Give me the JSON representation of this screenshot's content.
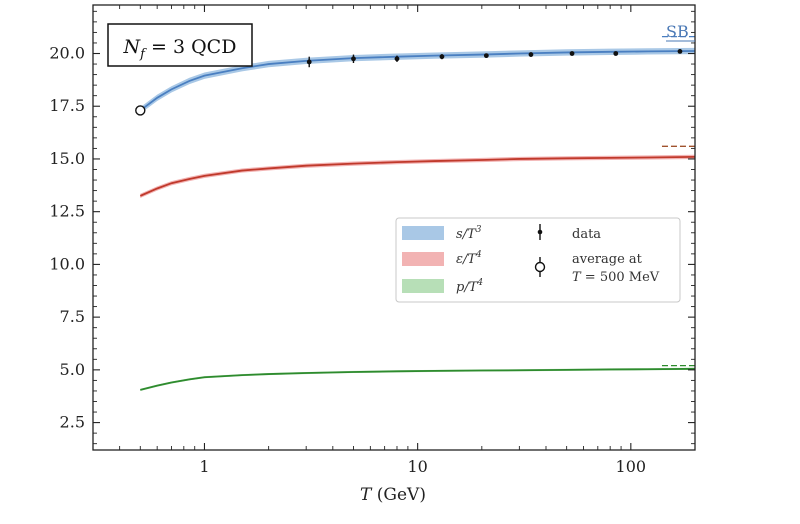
{
  "chart_data": {
    "type": "line",
    "title": "",
    "annotation_box": "N_f = 3 QCD",
    "corner_label": "SB",
    "xlabel": "T (GeV)",
    "ylabel": "",
    "xscale": "log",
    "xlim": [
      0.3,
      200
    ],
    "ylim": [
      1.2,
      22.3
    ],
    "x_ticks": [
      1,
      10,
      100
    ],
    "x_tick_labels": [
      "1",
      "10",
      "100"
    ],
    "y_ticks": [
      2.5,
      5.0,
      7.5,
      10.0,
      12.5,
      15.0,
      17.5,
      20.0
    ],
    "y_tick_labels": [
      "2.5",
      "5.0",
      "7.5",
      "10.0",
      "12.5",
      "15.0",
      "17.5",
      "20.0"
    ],
    "grid": false,
    "legend_position": "center-right",
    "series": [
      {
        "name": "s/T^3",
        "kind": "band",
        "color": "#4a7fc1",
        "band_color": "#a9c8e6",
        "x": [
          0.5,
          0.6,
          0.7,
          0.85,
          1,
          1.5,
          2,
          3,
          5,
          8,
          12,
          20,
          30,
          50,
          80,
          120,
          200
        ],
        "values": [
          17.3,
          17.9,
          18.3,
          18.7,
          18.95,
          19.3,
          19.5,
          19.65,
          19.78,
          19.85,
          19.9,
          19.95,
          20.0,
          20.05,
          20.08,
          20.1,
          20.12
        ],
        "band_halfwidth": 0.15
      },
      {
        "name": "ε/T^4",
        "kind": "band",
        "color": "#c0392b",
        "band_color": "#f2b3b3",
        "x": [
          0.5,
          0.6,
          0.7,
          0.85,
          1,
          1.5,
          2,
          3,
          5,
          8,
          12,
          20,
          30,
          50,
          80,
          120,
          200
        ],
        "values": [
          13.25,
          13.6,
          13.85,
          14.05,
          14.2,
          14.45,
          14.55,
          14.68,
          14.78,
          14.85,
          14.9,
          14.95,
          15.0,
          15.03,
          15.05,
          15.07,
          15.1
        ],
        "band_halfwidth": 0.1
      },
      {
        "name": "p/T^4",
        "kind": "band",
        "color": "#2e8b2e",
        "band_color": "#b7dfb7",
        "x": [
          0.5,
          0.6,
          0.7,
          0.85,
          1,
          1.5,
          2,
          3,
          5,
          8,
          12,
          20,
          30,
          50,
          80,
          120,
          200
        ],
        "values": [
          4.05,
          4.25,
          4.4,
          4.55,
          4.65,
          4.75,
          4.8,
          4.85,
          4.9,
          4.93,
          4.95,
          4.97,
          4.98,
          5.0,
          5.02,
          5.03,
          5.05
        ],
        "band_halfwidth": 0.05
      },
      {
        "name": "data",
        "kind": "points",
        "color": "#111111",
        "x": [
          3.1,
          5.0,
          8.0,
          13.0,
          21.0,
          34.0,
          53.0,
          85.0,
          170.0
        ],
        "values": [
          19.6,
          19.75,
          19.75,
          19.85,
          19.9,
          19.95,
          20.0,
          20.0,
          20.1
        ],
        "errors": [
          0.25,
          0.2,
          0.15,
          0.12,
          0.1,
          0.1,
          0.1,
          0.1,
          0.1
        ]
      },
      {
        "name": "average at T = 500 MeV",
        "kind": "open-point",
        "color": "#111111",
        "x": [
          0.5
        ],
        "values": [
          17.3
        ],
        "errors": [
          0.15
        ]
      }
    ],
    "sb_limits": [
      {
        "series": "s/T^3",
        "value": 20.8,
        "color": "#4a7fc1"
      },
      {
        "series": "ε/T^4",
        "value": 15.6,
        "color": "#a0522d"
      },
      {
        "series": "p/T^4",
        "value": 5.2,
        "color": "#2e8b2e"
      }
    ],
    "legend": {
      "entries_left": [
        "s/T^3",
        "ε/T^4",
        "p/T^4"
      ],
      "entries_right": [
        "data",
        "average at",
        "T = 500 MeV"
      ]
    }
  }
}
